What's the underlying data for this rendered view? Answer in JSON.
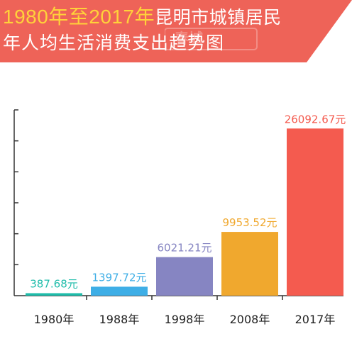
{
  "title": {
    "highlight": "1980年至2017年",
    "line1_rest": "昆明市城镇居民",
    "line2": "年人均生活消费支出趋势图"
  },
  "watermark": "春城",
  "colors": {
    "banner": "#ee6358",
    "title_highlight": "#ffd23a",
    "axis": "#333333"
  },
  "chart_data": {
    "type": "bar",
    "categories": [
      "1980年",
      "1988年",
      "1998年",
      "2008年",
      "2017年"
    ],
    "values": [
      387.68,
      1397.72,
      6021.21,
      9953.52,
      26092.67
    ],
    "value_labels": [
      "387.68元",
      "1397.72元",
      "6021.21元",
      "9953.52元",
      "26092.67元"
    ],
    "colors": [
      "#1fbcaa",
      "#3eaee6",
      "#8685c2",
      "#f0a82e",
      "#f45b4f"
    ],
    "ylim": [
      0,
      29000
    ],
    "grid": false,
    "xlabel": "",
    "ylabel": ""
  }
}
